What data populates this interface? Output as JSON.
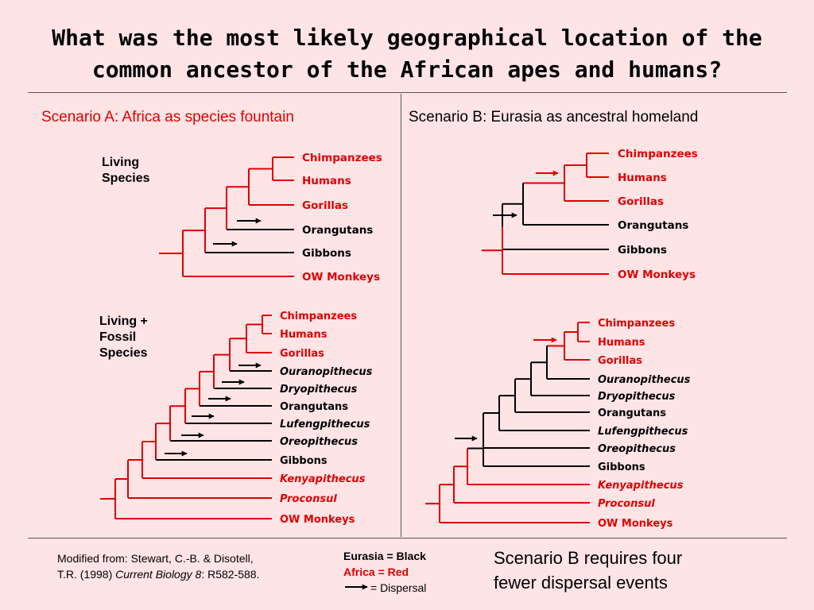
{
  "title": {
    "line1": "What was the most likely geographical location of the",
    "line2": "common ancestor of the African apes and humans?"
  },
  "scenario_a": "Scenario A:  Africa as species fountain",
  "scenario_b": "Scenario B:  Eurasia as ancestral homeland",
  "labels": {
    "living_line1": "Living",
    "living_line2": "Species",
    "fossil_line1": "Living +",
    "fossil_line2": "Fossil",
    "fossil_line3": "Species"
  },
  "colors": {
    "africa": "#e00000",
    "eurasia": "#000000",
    "background": "#ffe4e6"
  },
  "trees": [
    {
      "id": "A-living",
      "taxa": [
        {
          "name": "Chimpanzees",
          "region": "Africa",
          "italic": false
        },
        {
          "name": "Humans",
          "region": "Africa",
          "italic": false
        },
        {
          "name": "Gorillas",
          "region": "Africa",
          "italic": false
        },
        {
          "name": "Orangutans",
          "region": "Eurasia",
          "italic": false
        },
        {
          "name": "Gibbons",
          "region": "Eurasia",
          "italic": false
        },
        {
          "name": "OW Monkeys",
          "region": "Africa",
          "italic": false
        }
      ],
      "dispersals": [
        {
          "region": "Eurasia",
          "target": "Orangutans"
        },
        {
          "region": "Eurasia",
          "target": "Gibbons"
        }
      ]
    },
    {
      "id": "B-living",
      "taxa": [
        {
          "name": "Chimpanzees",
          "region": "Africa",
          "italic": false
        },
        {
          "name": "Humans",
          "region": "Africa",
          "italic": false
        },
        {
          "name": "Gorillas",
          "region": "Africa",
          "italic": false
        },
        {
          "name": "Orangutans",
          "region": "Eurasia",
          "italic": false
        },
        {
          "name": "Gibbons",
          "region": "Eurasia",
          "italic": false
        },
        {
          "name": "OW Monkeys",
          "region": "Africa",
          "italic": false
        }
      ],
      "dispersals": [
        {
          "region": "Africa",
          "target": "African apes"
        },
        {
          "region": "Eurasia",
          "target": "Hominoids"
        }
      ]
    },
    {
      "id": "A-fossil",
      "taxa": [
        {
          "name": "Chimpanzees",
          "region": "Africa",
          "italic": false
        },
        {
          "name": "Humans",
          "region": "Africa",
          "italic": false
        },
        {
          "name": "Gorillas",
          "region": "Africa",
          "italic": false
        },
        {
          "name": "Ouranopithecus",
          "region": "Eurasia",
          "italic": true
        },
        {
          "name": "Dryopithecus",
          "region": "Eurasia",
          "italic": true
        },
        {
          "name": "Orangutans",
          "region": "Eurasia",
          "italic": false
        },
        {
          "name": "Lufengpithecus",
          "region": "Eurasia",
          "italic": true
        },
        {
          "name": "Oreopithecus",
          "region": "Eurasia",
          "italic": true
        },
        {
          "name": "Gibbons",
          "region": "Eurasia",
          "italic": false
        },
        {
          "name": "Kenyapithecus",
          "region": "Africa",
          "italic": true
        },
        {
          "name": "Proconsul",
          "region": "Africa",
          "italic": true
        },
        {
          "name": "OW Monkeys",
          "region": "Africa",
          "italic": false
        }
      ],
      "dispersals": [
        {
          "region": "Eurasia",
          "target": "Ouranopithecus"
        },
        {
          "region": "Eurasia",
          "target": "Dryopithecus"
        },
        {
          "region": "Eurasia",
          "target": "Orangutans"
        },
        {
          "region": "Eurasia",
          "target": "Lufengpithecus"
        },
        {
          "region": "Eurasia",
          "target": "Oreopithecus"
        },
        {
          "region": "Eurasia",
          "target": "Gibbons"
        }
      ]
    },
    {
      "id": "B-fossil",
      "taxa": [
        {
          "name": "Chimpanzees",
          "region": "Africa",
          "italic": false
        },
        {
          "name": "Humans",
          "region": "Africa",
          "italic": false
        },
        {
          "name": "Gorillas",
          "region": "Africa",
          "italic": false
        },
        {
          "name": "Ouranopithecus",
          "region": "Eurasia",
          "italic": true
        },
        {
          "name": "Dryopithecus",
          "region": "Eurasia",
          "italic": true
        },
        {
          "name": "Orangutans",
          "region": "Eurasia",
          "italic": false
        },
        {
          "name": "Lufengpithecus",
          "region": "Eurasia",
          "italic": true
        },
        {
          "name": "Oreopithecus",
          "region": "Eurasia",
          "italic": true
        },
        {
          "name": "Gibbons",
          "region": "Eurasia",
          "italic": false
        },
        {
          "name": "Kenyapithecus",
          "region": "Africa",
          "italic": true
        },
        {
          "name": "Proconsul",
          "region": "Africa",
          "italic": true
        },
        {
          "name": "OW Monkeys",
          "region": "Africa",
          "italic": false
        }
      ],
      "dispersals": [
        {
          "region": "Africa",
          "target": "African apes"
        },
        {
          "region": "Eurasia",
          "target": "Eurasian hominoids"
        }
      ]
    }
  ],
  "reference": {
    "prefix": "Modified from:  Stewart, C.-B. & Disotell,",
    "line2_pre": "T.R. (1998) ",
    "journal": "Current Biology 8",
    "line2_post": ": R582-588."
  },
  "legend": {
    "eurasia": "Eurasia = Black",
    "africa": "Africa = Red",
    "dispersal": "= Dispersal"
  },
  "conclusion": {
    "line1": "Scenario B requires four",
    "line2": "fewer dispersal events"
  }
}
